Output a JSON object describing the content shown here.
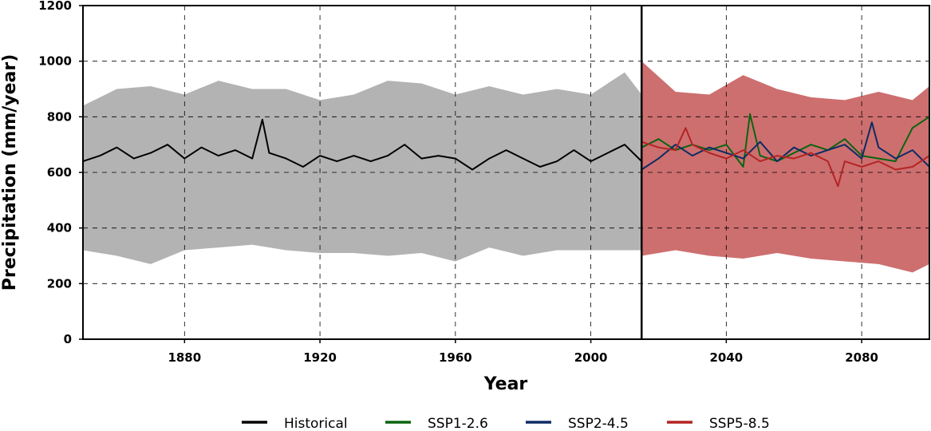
{
  "chart_data": {
    "type": "area",
    "title": "",
    "xlabel": "Year",
    "ylabel": "Precipitation (mm/year)",
    "xlim": [
      1850,
      2100
    ],
    "ylim": [
      0,
      1200
    ],
    "x_ticks": [
      1880,
      1920,
      1960,
      2000,
      2040,
      2080
    ],
    "y_ticks": [
      0,
      200,
      400,
      600,
      800,
      1000,
      1200
    ],
    "grid": "dashed",
    "divider_year": 2015,
    "legend_position": "bottom",
    "colors": {
      "historical_band": "#b3b3b3",
      "future_band": "#cd6f6f",
      "Historical": "#000000",
      "SSP1-2.6": "#0a640f",
      "SSP2-4.5": "#0c2c64",
      "SSP5-8.5": "#b42424"
    },
    "bands": [
      {
        "name": "",
        "x": [
          1850,
          1860,
          1870,
          1880,
          1890,
          1900,
          1910,
          1920,
          1930,
          1940,
          1950,
          1960,
          1970,
          1980,
          1990,
          2000,
          2010,
          2015
        ],
        "upper": [
          840,
          900,
          910,
          880,
          930,
          900,
          900,
          860,
          880,
          930,
          920,
          880,
          910,
          880,
          900,
          880,
          960,
          880
        ],
        "lower": [
          320,
          300,
          270,
          320,
          330,
          340,
          320,
          310,
          310,
          300,
          310,
          280,
          330,
          300,
          320,
          320,
          320,
          320
        ]
      },
      {
        "name": "",
        "x": [
          2015,
          2025,
          2035,
          2045,
          2055,
          2065,
          2075,
          2085,
          2095,
          2100
        ],
        "upper": [
          1000,
          890,
          880,
          950,
          900,
          870,
          860,
          890,
          860,
          910
        ],
        "lower": [
          300,
          320,
          300,
          290,
          310,
          290,
          280,
          270,
          240,
          270
        ]
      }
    ],
    "series": [
      {
        "name": "Historical",
        "x": [
          1850,
          1855,
          1860,
          1865,
          1870,
          1875,
          1880,
          1885,
          1890,
          1895,
          1900,
          1903,
          1905,
          1910,
          1915,
          1920,
          1925,
          1930,
          1935,
          1940,
          1945,
          1950,
          1955,
          1960,
          1965,
          1970,
          1975,
          1980,
          1985,
          1990,
          1995,
          2000,
          2005,
          2010,
          2015
        ],
        "values": [
          640,
          660,
          690,
          650,
          670,
          700,
          650,
          690,
          660,
          680,
          650,
          790,
          670,
          650,
          620,
          660,
          640,
          660,
          640,
          660,
          700,
          650,
          660,
          650,
          610,
          650,
          680,
          650,
          620,
          640,
          680,
          640,
          670,
          700,
          640
        ]
      },
      {
        "name": "SSP1-2.6",
        "x": [
          2015,
          2020,
          2025,
          2030,
          2035,
          2040,
          2045,
          2047,
          2050,
          2055,
          2060,
          2065,
          2070,
          2075,
          2080,
          2085,
          2090,
          2095,
          2100
        ],
        "values": [
          690,
          720,
          680,
          700,
          680,
          700,
          620,
          810,
          660,
          640,
          670,
          700,
          680,
          720,
          660,
          650,
          640,
          760,
          800
        ]
      },
      {
        "name": "SSP2-4.5",
        "x": [
          2015,
          2020,
          2025,
          2030,
          2035,
          2040,
          2045,
          2050,
          2055,
          2060,
          2065,
          2070,
          2075,
          2080,
          2083,
          2085,
          2090,
          2095,
          2100
        ],
        "values": [
          610,
          650,
          700,
          660,
          690,
          670,
          650,
          710,
          640,
          690,
          660,
          680,
          700,
          650,
          780,
          690,
          650,
          680,
          620
        ]
      },
      {
        "name": "SSP5-8.5",
        "x": [
          2015,
          2020,
          2025,
          2028,
          2030,
          2035,
          2040,
          2045,
          2050,
          2055,
          2060,
          2065,
          2070,
          2073,
          2075,
          2080,
          2085,
          2090,
          2095,
          2100
        ],
        "values": [
          710,
          690,
          680,
          760,
          700,
          670,
          650,
          680,
          640,
          660,
          650,
          670,
          640,
          550,
          640,
          620,
          640,
          610,
          620,
          660
        ]
      }
    ]
  }
}
